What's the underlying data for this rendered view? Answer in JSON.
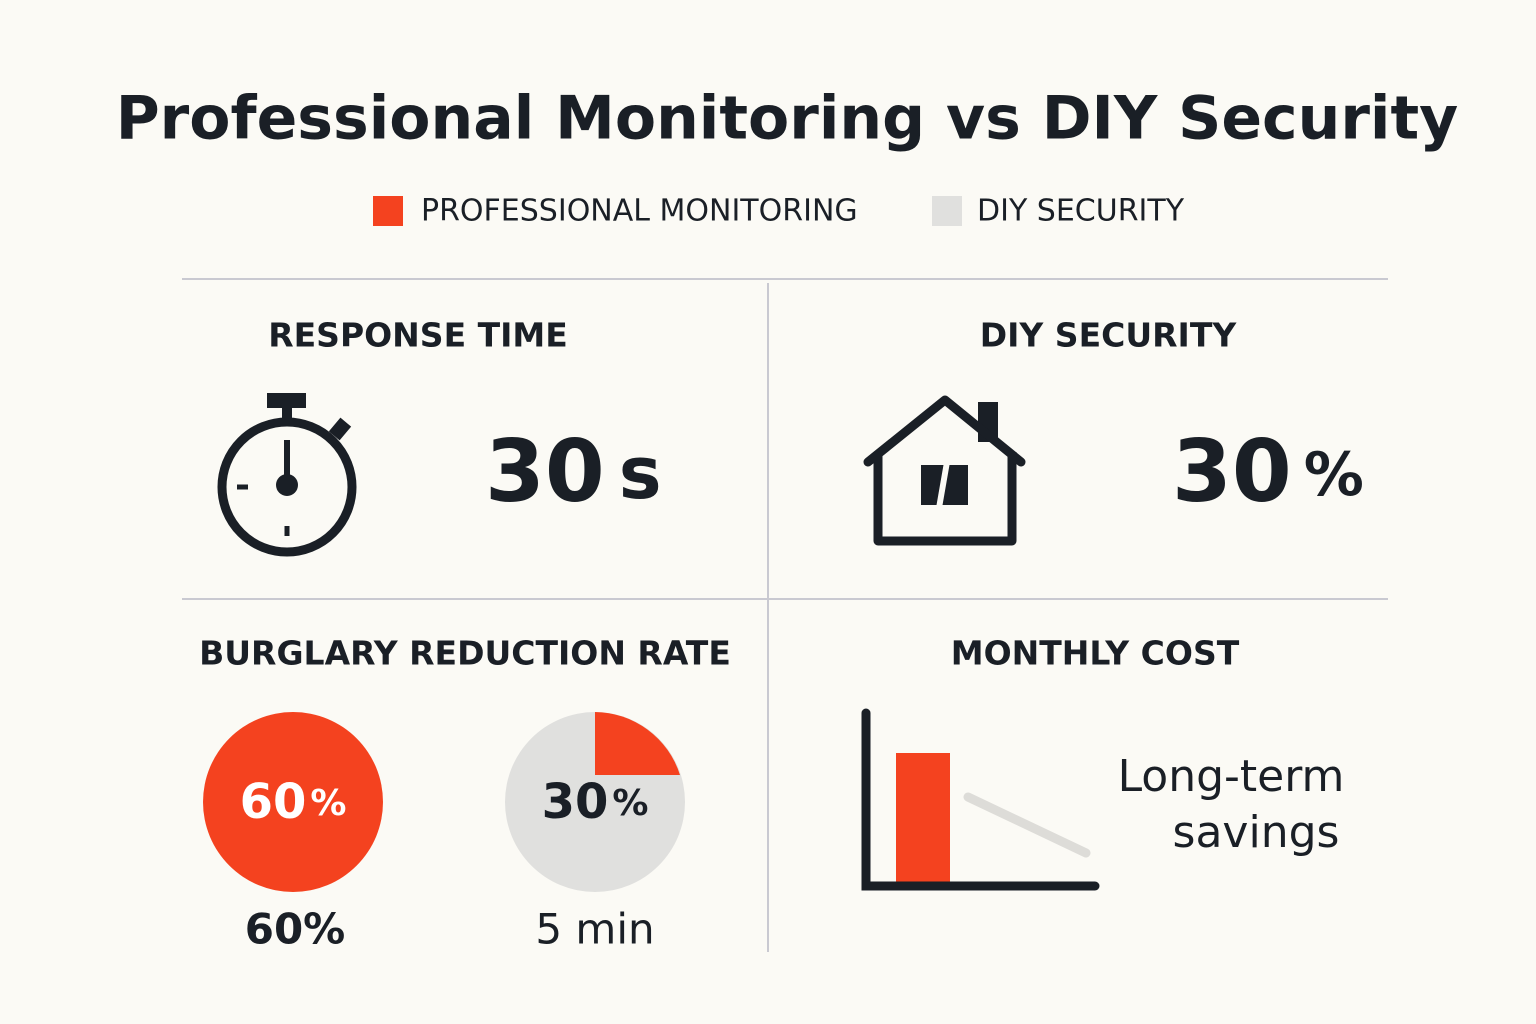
{
  "header": {
    "title": "Professional Monitoring vs DIY Security"
  },
  "legend": [
    {
      "name": "PROFESSIONAL MONITORING",
      "color": "#f4421f"
    },
    {
      "name": "DIY SECURITY",
      "color": "#e0e0de"
    }
  ],
  "panels": {
    "response_time": {
      "title": "RESPONSE TIME",
      "value": "30",
      "unit": "s"
    },
    "diy_security": {
      "title": "DIY SECURITY",
      "value": "30",
      "unit": "%"
    },
    "burglary": {
      "title": "BURGLARY REDUCTION RATE",
      "professional": {
        "inner_value": "60",
        "inner_unit": "%",
        "caption": "60%"
      },
      "diy": {
        "inner_value": "30",
        "inner_unit": "%",
        "caption": "5 min"
      }
    },
    "monthly_cost": {
      "title": "MONTHLY COST",
      "note_lines": [
        "Long-term",
        "savings"
      ]
    }
  }
}
